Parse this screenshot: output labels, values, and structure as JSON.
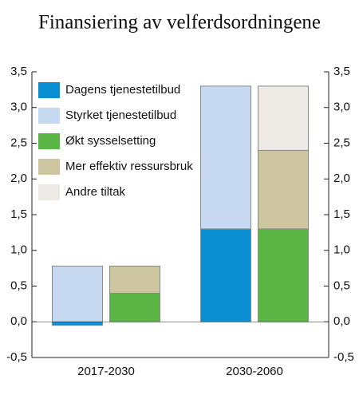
{
  "chart_data": {
    "type": "bar",
    "title": "Finansiering av velferdsordningene",
    "categories": [
      "2017-2030",
      "2030-2060"
    ],
    "series": [
      {
        "name": "Dagens tjenestetilbud",
        "color": "#0a8fd3",
        "stack": "left",
        "values": [
          -0.05,
          1.3
        ]
      },
      {
        "name": "Styrket tjenestetilbud",
        "color": "#c7d9f0",
        "stack": "left",
        "values": [
          0.78,
          2.0
        ]
      },
      {
        "name": "Økt sysselsetting",
        "color": "#5bb646",
        "stack": "right",
        "values": [
          0.4,
          1.3
        ]
      },
      {
        "name": "Mer effektiv ressursbruk",
        "color": "#cdc6a0",
        "stack": "right",
        "values": [
          0.38,
          1.1
        ]
      },
      {
        "name": "Andre tiltak",
        "color": "#ede9e4",
        "stack": "right",
        "values": [
          0,
          0.9
        ]
      }
    ],
    "ylim": [
      -0.5,
      3.5
    ],
    "yticks": [
      {
        "value": -0.5,
        "label": "-0,5"
      },
      {
        "value": 0,
        "label": "0,0"
      },
      {
        "value": 0.5,
        "label": "0,5"
      },
      {
        "value": 1,
        "label": "1,0"
      },
      {
        "value": 1.5,
        "label": "1,5"
      },
      {
        "value": 2,
        "label": "2,0"
      },
      {
        "value": 2.5,
        "label": "2,5"
      },
      {
        "value": 3,
        "label": "3,0"
      },
      {
        "value": 3.5,
        "label": "3,5"
      }
    ],
    "legend": "upper left"
  }
}
